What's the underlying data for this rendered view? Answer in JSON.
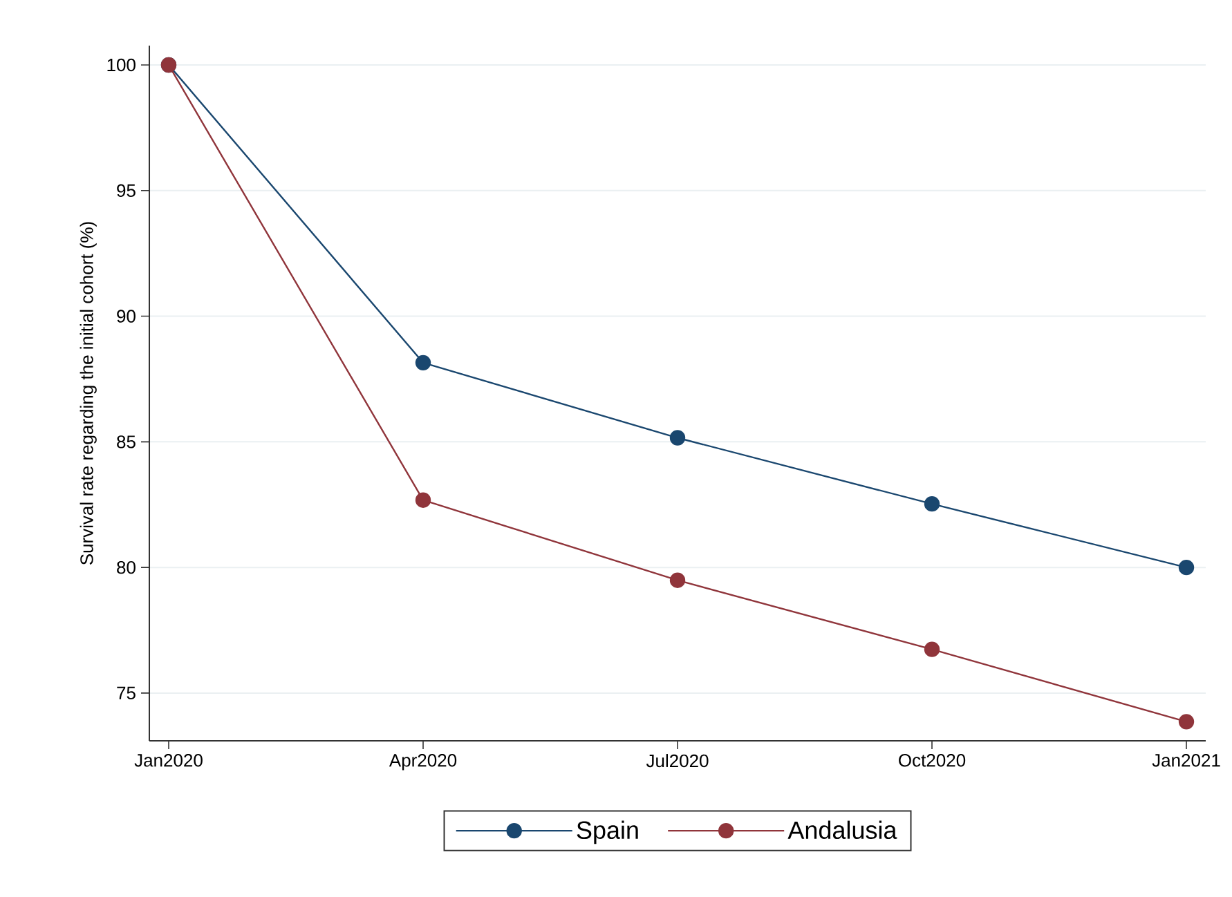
{
  "chart_data": {
    "type": "line",
    "ylabel": "Survival rate regarding the initial cohort (%)",
    "categories": [
      "Jan2020",
      "Apr2020",
      "Jul2020",
      "Oct2020",
      "Jan2021"
    ],
    "series": [
      {
        "name": "Spain",
        "color": "#1a476f",
        "values": [
          100,
          88.15,
          85.16,
          82.53,
          80.0
        ]
      },
      {
        "name": "Andalusia",
        "color": "#90353b",
        "values": [
          100,
          82.68,
          79.49,
          76.74,
          73.86
        ]
      }
    ],
    "ylim": [
      73.1,
      100.77
    ],
    "yticks": [
      75,
      80,
      85,
      90,
      95,
      100
    ],
    "grid": "y",
    "legend": "bottom",
    "marker": "circle",
    "line_style": "solid"
  }
}
